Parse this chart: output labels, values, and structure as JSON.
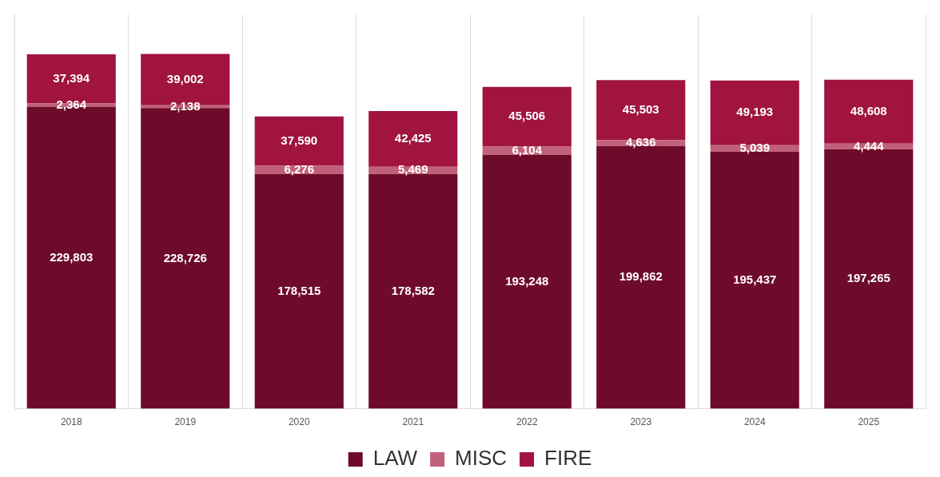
{
  "chart_data": {
    "type": "bar",
    "stacked": true,
    "categories": [
      "2018",
      "2019",
      "2020",
      "2021",
      "2022",
      "2023",
      "2024",
      "2025"
    ],
    "series": [
      {
        "name": "LAW",
        "color": "#6e0a2a",
        "values": [
          229803,
          228726,
          178515,
          178582,
          193248,
          199862,
          195437,
          197265
        ],
        "value_labels": [
          "229,803",
          "228,726",
          "178,515",
          "178,582",
          "193,248",
          "199,862",
          "195,437",
          "197,265"
        ]
      },
      {
        "name": "MISC",
        "color": "#c0607a",
        "values": [
          2364,
          2138,
          6276,
          5469,
          6104,
          4636,
          5039,
          4444
        ],
        "value_labels": [
          "2,364",
          "2,138",
          "6,276",
          "5,469",
          "6,104",
          "4,636",
          "5,039",
          "4,444"
        ]
      },
      {
        "name": "FIRE",
        "color": "#a0143f",
        "values": [
          37394,
          39002,
          37590,
          42425,
          45506,
          45503,
          49193,
          48608
        ],
        "value_labels": [
          "37,394",
          "39,002",
          "37,590",
          "42,425",
          "45,506",
          "45,503",
          "49,193",
          "48,608"
        ]
      }
    ],
    "grid": "x",
    "legend": "bottom"
  }
}
